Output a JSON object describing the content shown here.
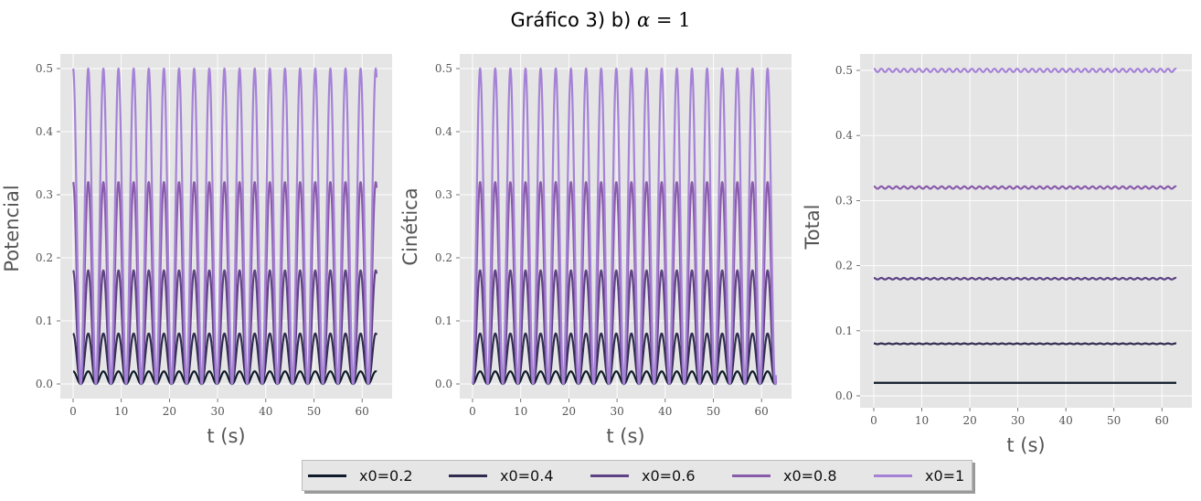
{
  "figure": {
    "suptitle": "Gráfico 3) b)",
    "suptitle_math": {
      "symbol": "α",
      "eq": " = 1"
    }
  },
  "legend": [
    {
      "label": "x0=0.2",
      "color": "#0f1b2a"
    },
    {
      "label": "x0=0.4",
      "color": "#302c50"
    },
    {
      "label": "x0=0.6",
      "color": "#5e4285"
    },
    {
      "label": "x0=0.8",
      "color": "#8a5bab"
    },
    {
      "label": "x0=1",
      "color": "#a582d6"
    }
  ],
  "chart_data": [
    {
      "type": "line",
      "title": "",
      "xlabel": "t (s)",
      "ylabel": "Potencial",
      "xlim": [
        0,
        63
      ],
      "ylim": [
        0,
        0.5
      ],
      "xticks": [
        0,
        10,
        20,
        30,
        40,
        50,
        60
      ],
      "yticks": [
        0.0,
        0.1,
        0.2,
        0.3,
        0.4,
        0.5
      ],
      "grid": true,
      "period": 3.1416,
      "series": [
        {
          "name": "x0=0.2",
          "min": 0,
          "max": 0.02,
          "phase": "max_at_0"
        },
        {
          "name": "x0=0.4",
          "min": 0,
          "max": 0.08,
          "phase": "max_at_0"
        },
        {
          "name": "x0=0.6",
          "min": 0,
          "max": 0.18,
          "phase": "max_at_0"
        },
        {
          "name": "x0=0.8",
          "min": 0,
          "max": 0.32,
          "phase": "max_at_0"
        },
        {
          "name": "x0=1",
          "min": 0,
          "max": 0.5,
          "phase": "max_at_0"
        }
      ]
    },
    {
      "type": "line",
      "title": "",
      "xlabel": "t (s)",
      "ylabel": "Cinética",
      "xlim": [
        0,
        63
      ],
      "ylim": [
        0,
        0.5
      ],
      "xticks": [
        0,
        10,
        20,
        30,
        40,
        50,
        60
      ],
      "yticks": [
        0.0,
        0.1,
        0.2,
        0.3,
        0.4,
        0.5
      ],
      "grid": true,
      "period": 3.1416,
      "series": [
        {
          "name": "x0=0.2",
          "min": 0,
          "max": 0.02,
          "phase": "min_at_0"
        },
        {
          "name": "x0=0.4",
          "min": 0,
          "max": 0.08,
          "phase": "min_at_0"
        },
        {
          "name": "x0=0.6",
          "min": 0,
          "max": 0.18,
          "phase": "min_at_0"
        },
        {
          "name": "x0=0.8",
          "min": 0,
          "max": 0.32,
          "phase": "min_at_0"
        },
        {
          "name": "x0=1",
          "min": 0,
          "max": 0.5,
          "phase": "min_at_0"
        }
      ]
    },
    {
      "type": "line",
      "title": "",
      "xlabel": "t (s)",
      "ylabel": "Total",
      "xlim": [
        0,
        63
      ],
      "ylim": [
        0,
        0.5
      ],
      "xticks": [
        0,
        10,
        20,
        30,
        40,
        50,
        60
      ],
      "yticks": [
        0.0,
        0.1,
        0.2,
        0.3,
        0.4,
        0.5
      ],
      "grid": true,
      "period": 3.1416,
      "series": [
        {
          "name": "x0=0.2",
          "level": 0.02,
          "ripple": 0.0
        },
        {
          "name": "x0=0.4",
          "level": 0.08,
          "ripple": 0.0006
        },
        {
          "name": "x0=0.6",
          "level": 0.18,
          "ripple": 0.0012
        },
        {
          "name": "x0=0.8",
          "level": 0.32,
          "ripple": 0.0018
        },
        {
          "name": "x0=1",
          "level": 0.5,
          "ripple": 0.0025
        }
      ]
    }
  ]
}
